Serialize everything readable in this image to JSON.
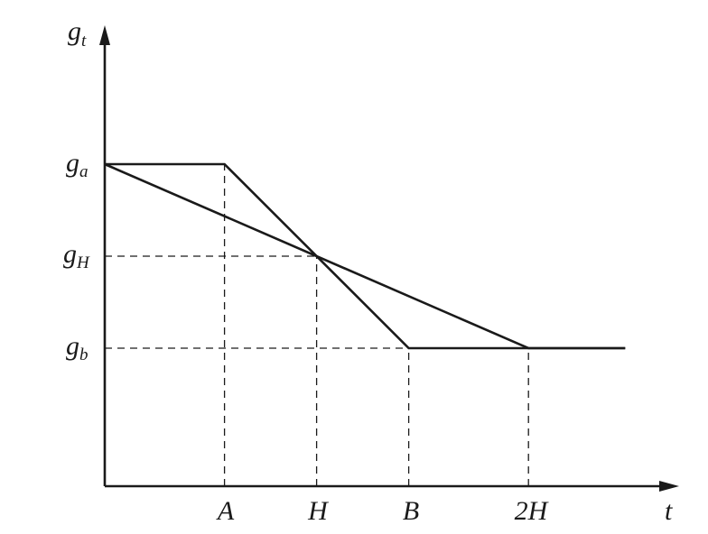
{
  "chart_data": {
    "type": "line",
    "title": "",
    "xlabel": "t",
    "ylabel_base": "g",
    "ylabel_sub": "t",
    "x_tick_labels": [
      "A",
      "H",
      "B",
      "2H"
    ],
    "y_tick_labels": [
      {
        "base": "g",
        "sub": "a"
      },
      {
        "base": "g",
        "sub": "H"
      },
      {
        "base": "g",
        "sub": "b"
      }
    ],
    "x_ticks": {
      "A": 1.3,
      "H": 2.3,
      "B": 3.3,
      "2H": 4.6
    },
    "y_levels": {
      "ga": 3.5,
      "gH": 2.5,
      "gb": 1.5
    },
    "xlim": [
      0,
      6.2
    ],
    "ylim": [
      0,
      4.9
    ],
    "grid": false,
    "series": [
      {
        "x": [
          0,
          1.3,
          3.3,
          4.6,
          5.65
        ],
        "y": [
          3.5,
          3.5,
          1.5,
          1.5,
          1.5
        ]
      },
      {
        "x": [
          0,
          4.6,
          5.65
        ],
        "y": [
          3.5,
          1.5,
          1.5
        ]
      }
    ],
    "guides": [
      {
        "from": [
          0,
          2.5
        ],
        "to": [
          2.3,
          2.5
        ]
      },
      {
        "from": [
          0,
          1.5
        ],
        "to": [
          3.3,
          1.5
        ]
      },
      {
        "from": [
          1.3,
          0
        ],
        "to": [
          1.3,
          3.5
        ]
      },
      {
        "from": [
          2.3,
          0
        ],
        "to": [
          2.3,
          2.5
        ]
      },
      {
        "from": [
          3.3,
          0
        ],
        "to": [
          3.3,
          1.5
        ]
      },
      {
        "from": [
          4.6,
          0
        ],
        "to": [
          4.6,
          1.5
        ]
      }
    ]
  }
}
